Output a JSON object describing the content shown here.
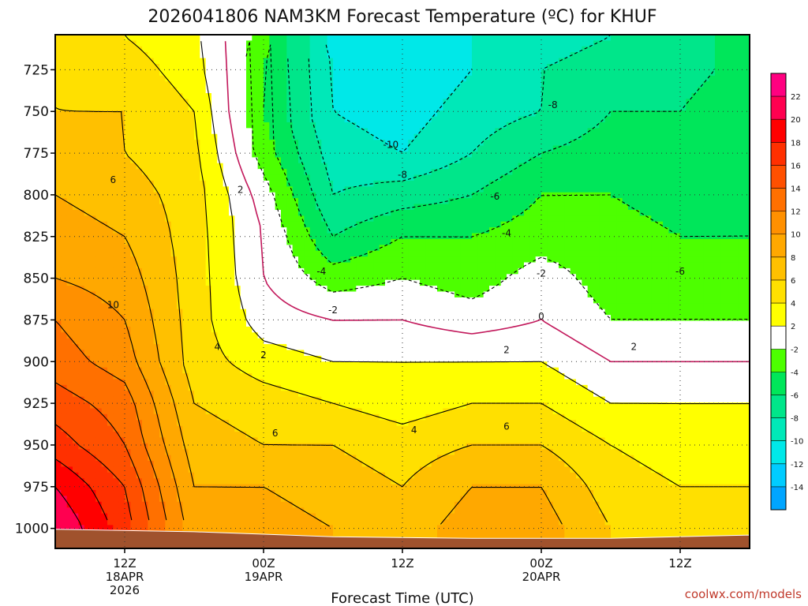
{
  "chart_data": {
    "type": "heatmap",
    "title": "2026041806 NAM3KM Forecast Temperature (ºC) for KHUF",
    "xlabel": "Forecast Time (UTC)",
    "ylabel": "",
    "credit": "coolwx.com/models",
    "x_range_hours": [
      0,
      60
    ],
    "y_range_hpa": [
      704,
      1012
    ],
    "yticks": [
      {
        "value": 725,
        "label": "725"
      },
      {
        "value": 750,
        "label": "750"
      },
      {
        "value": 775,
        "label": "775"
      },
      {
        "value": 800,
        "label": "800"
      },
      {
        "value": 825,
        "label": "825"
      },
      {
        "value": 850,
        "label": "850"
      },
      {
        "value": 875,
        "label": "875"
      },
      {
        "value": 900,
        "label": "900"
      },
      {
        "value": 925,
        "label": "925"
      },
      {
        "value": 950,
        "label": "950"
      },
      {
        "value": 975,
        "label": "975"
      },
      {
        "value": 1000,
        "label": "1000"
      }
    ],
    "xticks": [
      {
        "hour": 6,
        "line1": "12Z",
        "line2": "18APR",
        "line3": "2026"
      },
      {
        "hour": 18,
        "line1": "00Z",
        "line2": "19APR",
        "line3": ""
      },
      {
        "hour": 30,
        "line1": "12Z",
        "line2": "",
        "line3": ""
      },
      {
        "hour": 42,
        "line1": "00Z",
        "line2": "20APR",
        "line3": ""
      },
      {
        "hour": 54,
        "line1": "12Z",
        "line2": "",
        "line3": ""
      }
    ],
    "colorbar": {
      "levels": [
        -16,
        -14,
        -12,
        -10,
        -8,
        -6,
        -4,
        -2,
        2,
        4,
        6,
        8,
        10,
        12,
        14,
        16,
        18,
        20,
        22,
        24
      ],
      "colors": [
        "#00a5ff",
        "#00ccff",
        "#00e8e8",
        "#00e8b8",
        "#00e68a",
        "#00e65a",
        "#4dff00",
        "#ffffff",
        "#ffff00",
        "#ffe000",
        "#ffc000",
        "#ffa800",
        "#ff9000",
        "#ff7000",
        "#ff5000",
        "#ff3000",
        "#ff0000",
        "#ff0050",
        "#ff0080"
      ],
      "labels": [
        "-14",
        "-12",
        "-10",
        "-8",
        "-6",
        "-4",
        "-2",
        "2",
        "4",
        "6",
        "8",
        "10",
        "12",
        "14",
        "16",
        "18",
        "20",
        "22"
      ]
    },
    "ground_surface": [
      {
        "hour": 0,
        "hpa": 1000.5
      },
      {
        "hour": 12,
        "hpa": 1002
      },
      {
        "hour": 24,
        "hpa": 1005
      },
      {
        "hour": 36,
        "hpa": 1006
      },
      {
        "hour": 48,
        "hpa": 1006
      },
      {
        "hour": 60,
        "hpa": 1004
      }
    ],
    "temperature_profiles": [
      {
        "hour": 0,
        "hpa": [
          705,
          725,
          750,
          775,
          800,
          825,
          850,
          875,
          900,
          925,
          950,
          975,
          1000
        ],
        "temp_c": [
          5,
          6,
          6,
          7,
          8,
          9,
          10,
          12,
          13,
          15,
          17,
          20,
          22
        ]
      },
      {
        "hour": 6,
        "hpa": [
          705,
          725,
          750,
          775,
          800,
          825,
          850,
          875,
          900,
          925,
          950,
          975,
          1000
        ],
        "temp_c": [
          4,
          5,
          6,
          6,
          7,
          8,
          9,
          10,
          11,
          13,
          14,
          16,
          17
        ]
      },
      {
        "hour": 12,
        "hpa": [
          705,
          725,
          750,
          775,
          800,
          825,
          850,
          875,
          900,
          925,
          950,
          975,
          1000
        ],
        "temp_c": [
          2.5,
          3,
          4,
          4.5,
          5,
          5,
          5,
          5,
          5,
          6,
          7,
          8,
          9
        ]
      },
      {
        "hour": 18,
        "hpa": [
          705,
          725,
          750,
          775,
          800,
          825,
          850,
          875,
          900,
          925,
          950,
          975,
          1000
        ],
        "temp_c": [
          -3,
          -4,
          -4,
          -3,
          -1,
          0,
          0,
          1,
          3,
          5,
          6,
          8,
          9
        ]
      },
      {
        "hour": 24,
        "hpa": [
          705,
          725,
          750,
          775,
          800,
          825,
          850,
          875,
          900,
          925,
          950,
          975,
          1000
        ],
        "temp_c": [
          -11,
          -10,
          -10,
          -9,
          -8,
          -6,
          -3,
          0,
          2,
          4,
          6,
          7,
          8
        ]
      },
      {
        "hour": 30,
        "hpa": [
          705,
          725,
          750,
          775,
          800,
          825,
          850,
          875,
          900,
          925,
          950,
          975,
          1000
        ],
        "temp_c": [
          -12,
          -12,
          -11,
          -10,
          -7,
          -4,
          -2,
          0,
          2,
          3,
          5,
          6,
          7
        ]
      },
      {
        "hour": 36,
        "hpa": [
          705,
          725,
          750,
          775,
          800,
          825,
          850,
          875,
          900,
          925,
          950,
          975,
          1000
        ],
        "temp_c": [
          -10,
          -10,
          -9,
          -8,
          -6,
          -4,
          -3,
          -1,
          2,
          4,
          6,
          8,
          9
        ]
      },
      {
        "hour": 42,
        "hpa": [
          705,
          725,
          750,
          775,
          800,
          825,
          850,
          875,
          900,
          925,
          950,
          975,
          1000
        ],
        "temp_c": [
          -9,
          -8,
          -8,
          -6,
          -4,
          -3,
          -1,
          0,
          2,
          4,
          6,
          8,
          9
        ]
      },
      {
        "hour": 48,
        "hpa": [
          705,
          725,
          750,
          775,
          800,
          825,
          850,
          875,
          900,
          925,
          950,
          975,
          1000
        ],
        "temp_c": [
          -8,
          -7,
          -6,
          -5,
          -4,
          -3,
          -3,
          -2,
          0,
          2,
          4,
          5,
          6
        ]
      },
      {
        "hour": 54,
        "hpa": [
          705,
          725,
          750,
          775,
          800,
          825,
          850,
          875,
          900,
          925,
          950,
          975,
          1000
        ],
        "temp_c": [
          -7,
          -7,
          -6,
          -5,
          -5,
          -4,
          -3,
          -2,
          0,
          2,
          3,
          4,
          5
        ]
      },
      {
        "hour": 60,
        "hpa": [
          705,
          725,
          750,
          775,
          800,
          825,
          850,
          875,
          900,
          925,
          950,
          975,
          1000
        ],
        "temp_c": [
          -5,
          -5,
          -4,
          -4,
          -4,
          -4,
          -3,
          -2,
          0,
          2,
          3,
          4,
          5
        ]
      }
    ],
    "contour_labels": [
      {
        "text": "6",
        "hour": 5,
        "hpa": 791
      },
      {
        "text": "10",
        "hour": 5,
        "hpa": 866
      },
      {
        "text": "2",
        "hour": 16,
        "hpa": 797
      },
      {
        "text": "4",
        "hour": 14,
        "hpa": 891
      },
      {
        "text": "2",
        "hour": 18,
        "hpa": 896
      },
      {
        "text": "6",
        "hour": 19,
        "hpa": 943
      },
      {
        "text": "-4",
        "hour": 23,
        "hpa": 846
      },
      {
        "text": "-2",
        "hour": 24,
        "hpa": 869
      },
      {
        "text": "-10",
        "hour": 29,
        "hpa": 770
      },
      {
        "text": "-8",
        "hour": 30,
        "hpa": 788
      },
      {
        "text": "4",
        "hour": 31,
        "hpa": 941
      },
      {
        "text": "-6",
        "hour": 38,
        "hpa": 801
      },
      {
        "text": "-4",
        "hour": 39,
        "hpa": 823
      },
      {
        "text": "-2",
        "hour": 42,
        "hpa": 847
      },
      {
        "text": "2",
        "hour": 39,
        "hpa": 893
      },
      {
        "text": "6",
        "hour": 39,
        "hpa": 939
      },
      {
        "text": "-8",
        "hour": 43,
        "hpa": 746
      },
      {
        "text": "0",
        "hour": 42,
        "hpa": 873
      },
      {
        "text": "-6",
        "hour": 54,
        "hpa": 846
      },
      {
        "text": "2",
        "hour": 50,
        "hpa": 891
      }
    ]
  }
}
